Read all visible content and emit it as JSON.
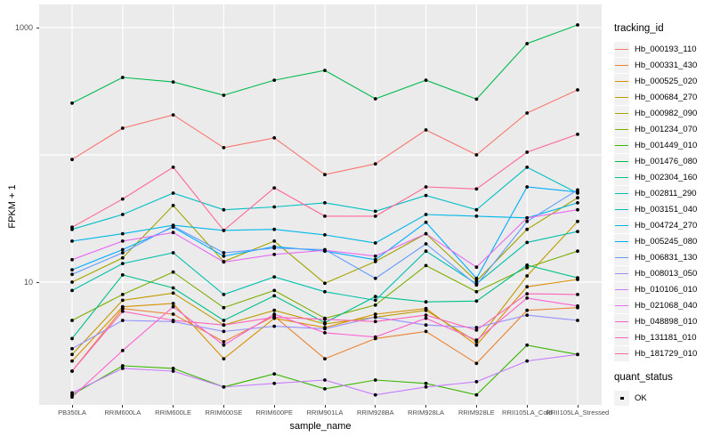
{
  "chart_data": {
    "type": "line",
    "xlabel": "sample_name",
    "ylabel": "FPKM + 1",
    "y_scale": "log10",
    "grid": true,
    "legend_position": "right",
    "panel_bg": "#EBEBEB",
    "grid_color": "#FFFFFF",
    "point_color": "#000000",
    "y_ticks": [
      {
        "label": "10",
        "value": 10
      },
      {
        "label": "1000",
        "value": 1000
      }
    ],
    "y_gridlines": [
      10,
      100,
      1000
    ],
    "ylim": [
      1.05,
      1600
    ],
    "categories": [
      "PB350LA",
      "RRIM600LA",
      "RRIM600LE",
      "RRIM600SE",
      "RRIM600PE",
      "RRIM901LA",
      "RRIM928BA",
      "RRIM928LA",
      "RRIM928LE",
      "RRII105LA_Cold",
      "RRII105LA_Stressed"
    ],
    "legend_title": "tracking_id",
    "legend2_title": "quant_status",
    "legend2_items": [
      {
        "label": "OK",
        "marker": "black-point"
      }
    ],
    "series": [
      {
        "name": "Hb_000193_110",
        "color": "#F8766D",
        "values": [
          92,
          162,
          206,
          114,
          136,
          70,
          85,
          157,
          100,
          213,
          324
        ]
      },
      {
        "name": "Hb_000331_430",
        "color": "#EA8331",
        "values": [
          2.0,
          6.2,
          5.6,
          3.4,
          5.4,
          2.5,
          3.6,
          4.1,
          2.3,
          6.0,
          6.3
        ]
      },
      {
        "name": "Hb_000525_020",
        "color": "#D89000",
        "values": [
          2.4,
          6.4,
          6.8,
          2.5,
          5.2,
          4.4,
          5.6,
          6.2,
          3.2,
          9.2,
          10.5
        ]
      },
      {
        "name": "Hb_000684_270",
        "color": "#C09B00",
        "values": [
          2.7,
          7.2,
          8.2,
          4.6,
          6.0,
          4.7,
          5.3,
          6.0,
          3.4,
          11.2,
          30
        ]
      },
      {
        "name": "Hb_000982_090",
        "color": "#A3A500",
        "values": [
          10,
          15.5,
          40,
          14.5,
          21,
          9.8,
          14.5,
          24,
          10.2,
          26,
          46
        ]
      },
      {
        "name": "Hb_001234_070",
        "color": "#7CAE00",
        "values": [
          5.0,
          8.0,
          12,
          6.3,
          8.6,
          5.2,
          6.6,
          13.5,
          8.4,
          13,
          17.5
        ]
      },
      {
        "name": "Hb_001449_010",
        "color": "#39B600",
        "values": [
          1.3,
          2.2,
          2.1,
          1.5,
          1.9,
          1.45,
          1.7,
          1.6,
          1.3,
          3.2,
          2.7
        ]
      },
      {
        "name": "Hb_001476_080",
        "color": "#00BB4E",
        "values": [
          255,
          406,
          374,
          294,
          386,
          461,
          276,
          386,
          274,
          748,
          1050
        ]
      },
      {
        "name": "Hb_002304_160",
        "color": "#00C08B",
        "values": [
          3.6,
          11.4,
          9.0,
          5.0,
          7.8,
          4.8,
          7.7,
          7.0,
          7.1,
          13.6,
          10.8
        ]
      },
      {
        "name": "Hb_002811_290",
        "color": "#00C0AF",
        "values": [
          8.6,
          14,
          17,
          8.0,
          11,
          8.4,
          7.2,
          17.5,
          9.7,
          20.5,
          25
        ]
      },
      {
        "name": "Hb_003151_040",
        "color": "#00BFC4",
        "values": [
          26,
          34,
          50,
          37,
          39,
          42,
          36,
          48,
          37,
          80,
          50
        ]
      },
      {
        "name": "Hb_004724_270",
        "color": "#00B8E7",
        "values": [
          21,
          24,
          28,
          25.5,
          26,
          23.5,
          20.3,
          34,
          33,
          32,
          42
        ]
      },
      {
        "name": "Hb_005245_080",
        "color": "#00ACFC",
        "values": [
          12.5,
          18,
          27,
          16,
          19,
          17.5,
          15,
          29.5,
          10.7,
          56,
          51
        ]
      },
      {
        "name": "Hb_006831_130",
        "color": "#619CFF",
        "values": [
          11.5,
          17,
          27.5,
          17,
          18.5,
          18,
          10.7,
          20,
          9.5,
          30,
          53
        ]
      },
      {
        "name": "Hb_008013_050",
        "color": "#9590FF",
        "values": [
          3.0,
          5.0,
          4.9,
          4.1,
          4.5,
          4.3,
          5.3,
          4.6,
          4.4,
          5.5,
          5.0
        ]
      },
      {
        "name": "Hb_010106_010",
        "color": "#C77CFF",
        "values": [
          1.35,
          2.1,
          2.0,
          1.5,
          1.6,
          1.7,
          1.3,
          1.5,
          1.65,
          2.4,
          2.7
        ]
      },
      {
        "name": "Hb_021068_040",
        "color": "#E76BF3",
        "values": [
          15,
          21,
          24.5,
          14.4,
          16.5,
          17.8,
          16,
          24,
          13.1,
          32,
          37
        ]
      },
      {
        "name": "Hb_048898_010",
        "color": "#FD61D1",
        "values": [
          1.25,
          2.9,
          6.4,
          3.2,
          5.6,
          4.0,
          3.7,
          5.2,
          3.5,
          7.5,
          6.5
        ]
      },
      {
        "name": "Hb_131181_010",
        "color": "#FF62BC",
        "values": [
          2.0,
          5.9,
          5.0,
          4.6,
          5.3,
          5.1,
          4.9,
          5.5,
          4.2,
          8.1,
          8.0
        ]
      },
      {
        "name": "Hb_181729_010",
        "color": "#FF6A98",
        "values": [
          27,
          45,
          80,
          25.5,
          55,
          33,
          33,
          56,
          54,
          105,
          145
        ]
      }
    ]
  }
}
